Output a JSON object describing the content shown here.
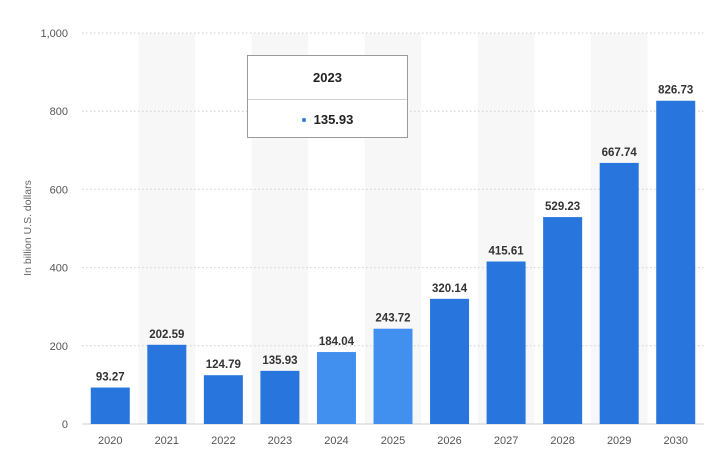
{
  "chart_data": {
    "type": "bar",
    "categories": [
      "2020",
      "2021",
      "2022",
      "2023",
      "2024",
      "2025",
      "2026",
      "2027",
      "2028",
      "2029",
      "2030"
    ],
    "values": [
      93.27,
      202.59,
      124.79,
      135.93,
      184.04,
      243.72,
      320.14,
      415.61,
      529.23,
      667.74,
      826.73
    ],
    "value_labels": [
      "93.27",
      "202.59",
      "124.79",
      "135.93",
      "184.04",
      "243.72",
      "320.14",
      "415.61",
      "529.23",
      "667.74",
      "826.73"
    ],
    "ylabel": "In billion U.S. dollars",
    "ylim": [
      0,
      1000
    ],
    "yticks": [
      0,
      200,
      400,
      600,
      800,
      1000
    ],
    "ytick_labels": [
      "0",
      "200",
      "400",
      "600",
      "800",
      "1,000"
    ],
    "grid": true,
    "colors": {
      "bar": "#2876dd",
      "bar_highlight": "#4190f0",
      "grid": "#cfcfcf",
      "band": "#f7f7f7"
    },
    "highlighted_categories": [
      "2024",
      "2025"
    ],
    "tooltip": {
      "title": "2023",
      "value": "135.93"
    }
  }
}
